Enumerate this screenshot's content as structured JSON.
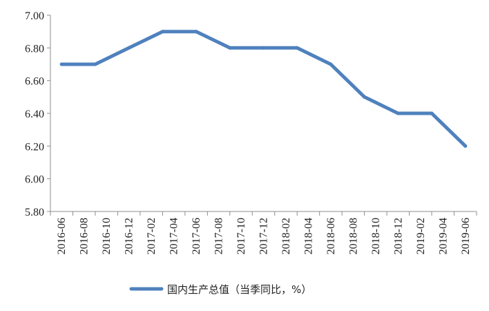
{
  "chart_data": {
    "type": "line",
    "x": [
      "2016-06",
      "2016-08",
      "2016-10",
      "2016-12",
      "2017-02",
      "2017-04",
      "2017-06",
      "2017-08",
      "2017-10",
      "2017-12",
      "2018-02",
      "2018-04",
      "2018-06",
      "2018-08",
      "2018-10",
      "2018-12",
      "2019-02",
      "2019-04",
      "2019-06"
    ],
    "series": [
      {
        "name": "国内生产总值（当季同比，%）",
        "color": "#4f81bd",
        "points": [
          {
            "x": "2016-06",
            "y": 6.7
          },
          {
            "x": "2016-09",
            "y": 6.7
          },
          {
            "x": "2016-12",
            "y": 6.8
          },
          {
            "x": "2017-03",
            "y": 6.9
          },
          {
            "x": "2017-06",
            "y": 6.9
          },
          {
            "x": "2017-09",
            "y": 6.8
          },
          {
            "x": "2017-12",
            "y": 6.8
          },
          {
            "x": "2018-03",
            "y": 6.8
          },
          {
            "x": "2018-06",
            "y": 6.7
          },
          {
            "x": "2018-09",
            "y": 6.5
          },
          {
            "x": "2018-12",
            "y": 6.4
          },
          {
            "x": "2019-03",
            "y": 6.4
          },
          {
            "x": "2019-06",
            "y": 6.2
          }
        ]
      }
    ],
    "y_ticks": [
      "5.80",
      "6.00",
      "6.20",
      "6.40",
      "6.60",
      "6.80",
      "7.00"
    ],
    "ylim": [
      5.8,
      7.0
    ],
    "grid": false,
    "legend_position": "bottom"
  }
}
